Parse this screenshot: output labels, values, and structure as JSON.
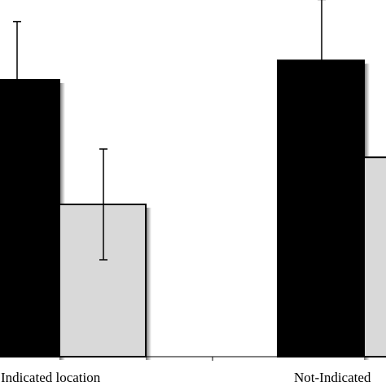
{
  "chart_data": {
    "type": "bar",
    "categories": [
      "Indicated location",
      "Not-Indicated"
    ],
    "series": [
      {
        "values": [
          100,
          107
        ],
        "errors": [
          21,
          22
        ]
      },
      {
        "values": [
          55,
          72
        ],
        "errors": [
          20,
          0
        ]
      }
    ],
    "ylim": [
      0,
      140
    ],
    "grid": false,
    "legend": "none",
    "colors": [
      "#000000",
      "#d9d9d9"
    ]
  }
}
